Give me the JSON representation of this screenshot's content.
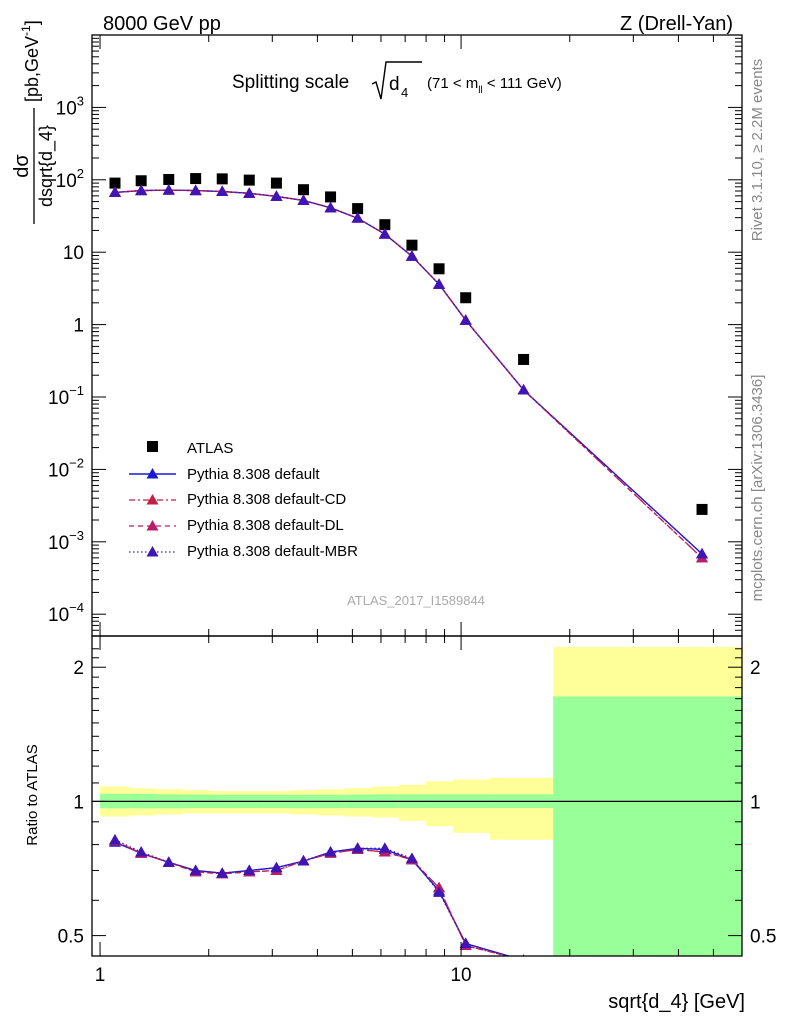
{
  "header": {
    "left": "8000 GeV pp",
    "right": "Z (Drell-Yan)"
  },
  "main_title": {
    "text": "Splitting scale",
    "sym": "d",
    "sub": "4",
    "cut": "(71 < m",
    "cut_sub": "ll",
    "cut_end": " < 111 GeV)"
  },
  "ylabel_top": {
    "num": "dσ",
    "den": "dsqrt{d_4}",
    "unit": "[pb,GeV",
    "unit_sup": "-1",
    "unit_end": "]"
  },
  "ylabel_ratio": "Ratio to ATLAS",
  "xlabel": "sqrt{d_4} [GeV]",
  "side_right_top": "Rivet 3.1.10, ≥ 2.2M events",
  "side_right_bottom": "mcplots.cern.ch [arXiv:1306.3436]",
  "analysis_id": "ATLAS_2017_I1589844",
  "legend": {
    "atlas": "ATLAS",
    "default": "Pythia 8.308 default",
    "cd": "Pythia 8.308 default-CD",
    "dl": "Pythia 8.308 default-DL",
    "mbr": "Pythia 8.308 default-MBR"
  },
  "colors": {
    "data": "#000000",
    "default": "#1a1ad2",
    "cd": "#c11f47",
    "dl": "#b71d6a",
    "mbr": "#3f16b3",
    "band_stat": "#99ff99",
    "band_total": "#ffff99"
  },
  "chart_data": [
    {
      "type": "scatter",
      "panel": "main",
      "xscale": "log",
      "yscale": "log",
      "xlim": [
        0.95,
        60
      ],
      "ylim": [
        5e-05,
        10000
      ],
      "x_ticks": [],
      "y_ticks": [
        {
          "v": 0.0001,
          "base": "10",
          "exp": "−4"
        },
        {
          "v": 0.001,
          "base": "10",
          "exp": "−3"
        },
        {
          "v": 0.01,
          "base": "10",
          "exp": "−2"
        },
        {
          "v": 0.1,
          "base": "10",
          "exp": "−1"
        },
        {
          "v": 1,
          "base": "1",
          "exp": ""
        },
        {
          "v": 10,
          "base": "10",
          "exp": ""
        },
        {
          "v": 100,
          "base": "10",
          "exp": "2"
        },
        {
          "v": 1000,
          "base": "10",
          "exp": "3"
        }
      ],
      "x": [
        1.1,
        1.3,
        1.55,
        1.84,
        2.18,
        2.59,
        3.08,
        3.66,
        4.35,
        5.17,
        6.15,
        7.31,
        8.69,
        10.3,
        14.9,
        46.5
      ],
      "series": [
        {
          "name": "ATLAS",
          "key": "atlas",
          "values": [
            90,
            97,
            101,
            104,
            103,
            99,
            90,
            73,
            58,
            40,
            24,
            12.5,
            5.9,
            2.35,
            0.33,
            0.0028
          ]
        },
        {
          "name": "Pythia 8.308 default",
          "key": "default",
          "values": [
            67,
            71,
            72,
            71,
            69,
            65,
            59,
            52,
            41,
            29.5,
            17.8,
            8.8,
            3.6,
            1.15,
            0.125,
            0.00068
          ]
        },
        {
          "name": "Pythia 8.308 default-CD",
          "key": "cd",
          "values": [
            67,
            71,
            72,
            71,
            69,
            65,
            59,
            52,
            41,
            29.5,
            17.8,
            8.8,
            3.6,
            1.15,
            0.125,
            0.0006
          ]
        },
        {
          "name": "Pythia 8.308 default-DL",
          "key": "dl",
          "values": [
            67,
            71,
            72,
            71,
            69,
            65,
            59,
            52,
            41,
            29.5,
            17.8,
            8.8,
            3.6,
            1.15,
            0.125,
            0.0006
          ]
        },
        {
          "name": "Pythia 8.308 default-MBR",
          "key": "mbr",
          "values": [
            67,
            71,
            72,
            71,
            69,
            65,
            59,
            52,
            41,
            29.5,
            17.8,
            8.8,
            3.6,
            1.15,
            0.125,
            0.00068
          ]
        }
      ]
    },
    {
      "type": "line",
      "panel": "ratio",
      "xscale": "log",
      "yscale": "log",
      "xlim": [
        0.95,
        60
      ],
      "ylim": [
        0.45,
        2.35
      ],
      "x_ticks": [
        {
          "v": 1,
          "label": "1"
        },
        {
          "v": 10,
          "label": "10"
        }
      ],
      "y_ticks": [
        {
          "v": 0.5,
          "label": "0.5"
        },
        {
          "v": 1,
          "label": "1"
        },
        {
          "v": 2,
          "label": "2"
        }
      ],
      "band_edges": [
        1.0,
        1.2,
        1.42,
        1.69,
        2.01,
        2.39,
        2.84,
        3.37,
        4.0,
        4.76,
        5.65,
        6.72,
        7.99,
        9.5,
        12.0,
        18.0,
        60
      ],
      "band_stat_lo": [
        0.965,
        0.965,
        0.965,
        0.966,
        0.966,
        0.966,
        0.966,
        0.966,
        0.966,
        0.966,
        0.966,
        0.966,
        0.966,
        0.966,
        0.966,
        0.2
      ],
      "band_stat_hi": [
        1.04,
        1.04,
        1.037,
        1.036,
        1.035,
        1.035,
        1.035,
        1.035,
        1.035,
        1.036,
        1.037,
        1.037,
        1.037,
        1.037,
        1.037,
        1.72
      ],
      "band_total_lo": [
        0.925,
        0.93,
        0.935,
        0.94,
        0.94,
        0.94,
        0.94,
        0.935,
        0.93,
        0.925,
        0.92,
        0.905,
        0.88,
        0.85,
        0.82,
        0.2
      ],
      "band_total_hi": [
        1.08,
        1.07,
        1.065,
        1.06,
        1.055,
        1.055,
        1.055,
        1.06,
        1.065,
        1.07,
        1.08,
        1.09,
        1.11,
        1.12,
        1.13,
        2.22
      ],
      "x": [
        1.1,
        1.3,
        1.55,
        1.84,
        2.18,
        2.59,
        3.08,
        3.66,
        4.35,
        5.17,
        6.15,
        7.31,
        8.69,
        10.3,
        14.9
      ],
      "series": [
        {
          "name": "Pythia 8.308 default",
          "key": "default",
          "values": [
            0.81,
            0.765,
            0.73,
            0.7,
            0.69,
            0.7,
            0.71,
            0.735,
            0.77,
            0.785,
            0.78,
            0.74,
            0.63,
            0.48,
            0.44
          ]
        },
        {
          "name": "Pythia 8.308 default-CD",
          "key": "cd",
          "values": [
            0.815,
            0.765,
            0.73,
            0.695,
            0.688,
            0.695,
            0.7,
            0.735,
            0.765,
            0.78,
            0.77,
            0.74,
            0.64,
            0.475,
            0.44
          ]
        },
        {
          "name": "Pythia 8.308 default-DL",
          "key": "dl",
          "values": [
            0.815,
            0.765,
            0.73,
            0.695,
            0.688,
            0.695,
            0.7,
            0.735,
            0.765,
            0.78,
            0.77,
            0.74,
            0.64,
            0.475,
            0.44
          ]
        },
        {
          "name": "Pythia 8.308 default-MBR",
          "key": "mbr",
          "values": [
            0.82,
            0.77,
            0.73,
            0.7,
            0.69,
            0.7,
            0.71,
            0.735,
            0.77,
            0.785,
            0.785,
            0.745,
            0.625,
            0.48,
            0.44
          ]
        }
      ]
    }
  ]
}
